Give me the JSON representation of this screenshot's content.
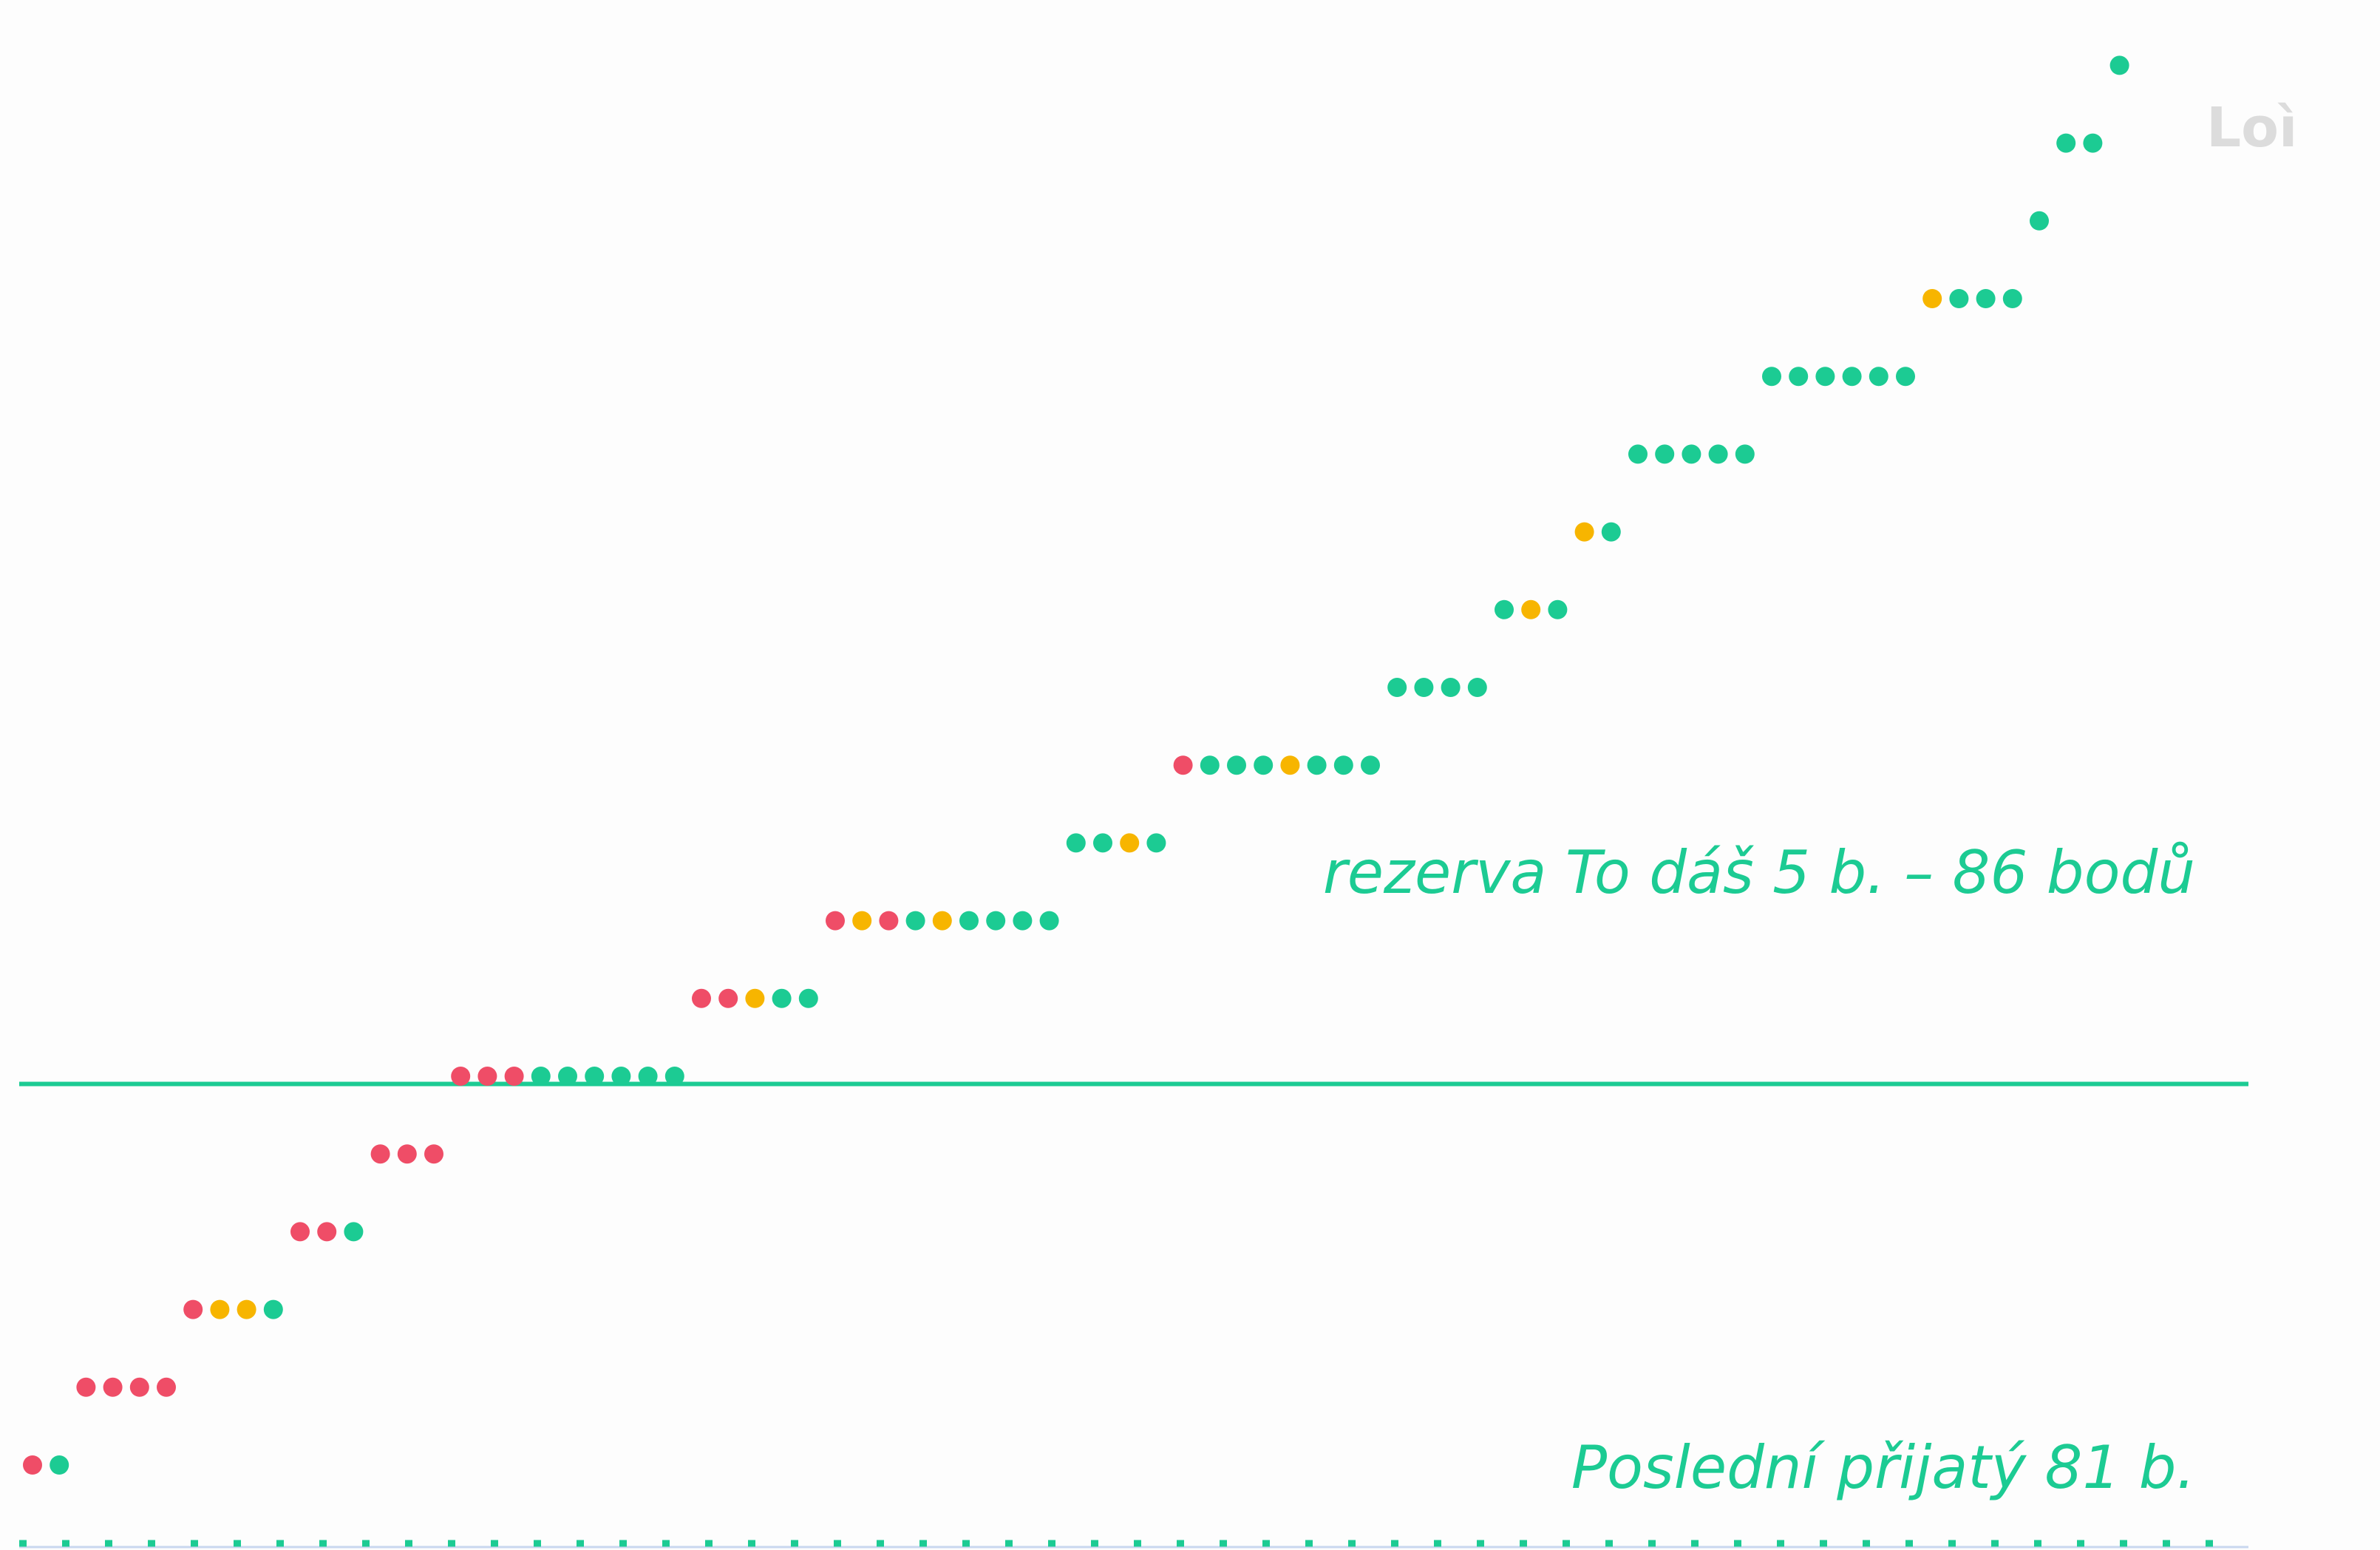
{
  "colors": {
    "background": "#fdfdfd",
    "accent": "#1ccb93",
    "green": "#1ccb93",
    "yellow": "#f7b500",
    "red": "#ef4d67",
    "corner_text": "#dcdcdc",
    "baseline": "#c9d7ef"
  },
  "chart_data": {
    "type": "scatter",
    "title": "",
    "xlabel": "",
    "ylabel": "",
    "y_unit": "points",
    "xlim": [
      0,
      84
    ],
    "ylim": [
      80,
      100
    ],
    "grid": false,
    "legend": "none",
    "color_states": [
      "red",
      "yellow",
      "green"
    ],
    "rows": [
      {
        "y": 81,
        "dots": [
          "red",
          "green"
        ]
      },
      {
        "y": 82,
        "dots": [
          "red",
          "red",
          "red",
          "red"
        ]
      },
      {
        "y": 83,
        "dots": [
          "red",
          "yellow",
          "yellow",
          "green"
        ]
      },
      {
        "y": 84,
        "dots": [
          "red",
          "red",
          "green"
        ]
      },
      {
        "y": 85,
        "dots": [
          "red",
          "red",
          "red"
        ]
      },
      {
        "y": 86,
        "dots": [
          "red",
          "red",
          "red",
          "green",
          "green",
          "green",
          "green",
          "green",
          "green"
        ]
      },
      {
        "y": 87,
        "dots": [
          "red",
          "red",
          "yellow",
          "green",
          "green"
        ]
      },
      {
        "y": 88,
        "dots": [
          "red",
          "yellow",
          "red",
          "green",
          "yellow",
          "green",
          "green",
          "green",
          "green"
        ]
      },
      {
        "y": 89,
        "dots": [
          "green",
          "green",
          "yellow",
          "green"
        ]
      },
      {
        "y": 90,
        "dots": [
          "red",
          "green",
          "green",
          "green",
          "yellow",
          "green",
          "green",
          "green"
        ]
      },
      {
        "y": 91,
        "dots": [
          "green",
          "green",
          "green",
          "green"
        ]
      },
      {
        "y": 92,
        "dots": [
          "green",
          "yellow",
          "green"
        ]
      },
      {
        "y": 93,
        "dots": [
          "yellow",
          "green"
        ]
      },
      {
        "y": 94,
        "dots": [
          "green",
          "green",
          "green",
          "green",
          "green"
        ]
      },
      {
        "y": 95,
        "dots": [
          "green",
          "green",
          "green",
          "green",
          "green",
          "green"
        ]
      },
      {
        "y": 96,
        "dots": [
          "yellow",
          "green",
          "green",
          "green"
        ]
      },
      {
        "y": 97,
        "dots": [
          "green"
        ]
      },
      {
        "y": 98,
        "dots": [
          "green",
          "green"
        ]
      },
      {
        "y": 99,
        "dots": [
          "green"
        ]
      }
    ],
    "reference_lines": [
      {
        "y": 85.9,
        "style": "solid",
        "label": "rezerva To dáš 5 b. – 86 bodů"
      },
      {
        "y": 80,
        "style": "dotted",
        "label": "Poslední přijatý 81 b."
      }
    ],
    "corner_label": "Loì"
  }
}
